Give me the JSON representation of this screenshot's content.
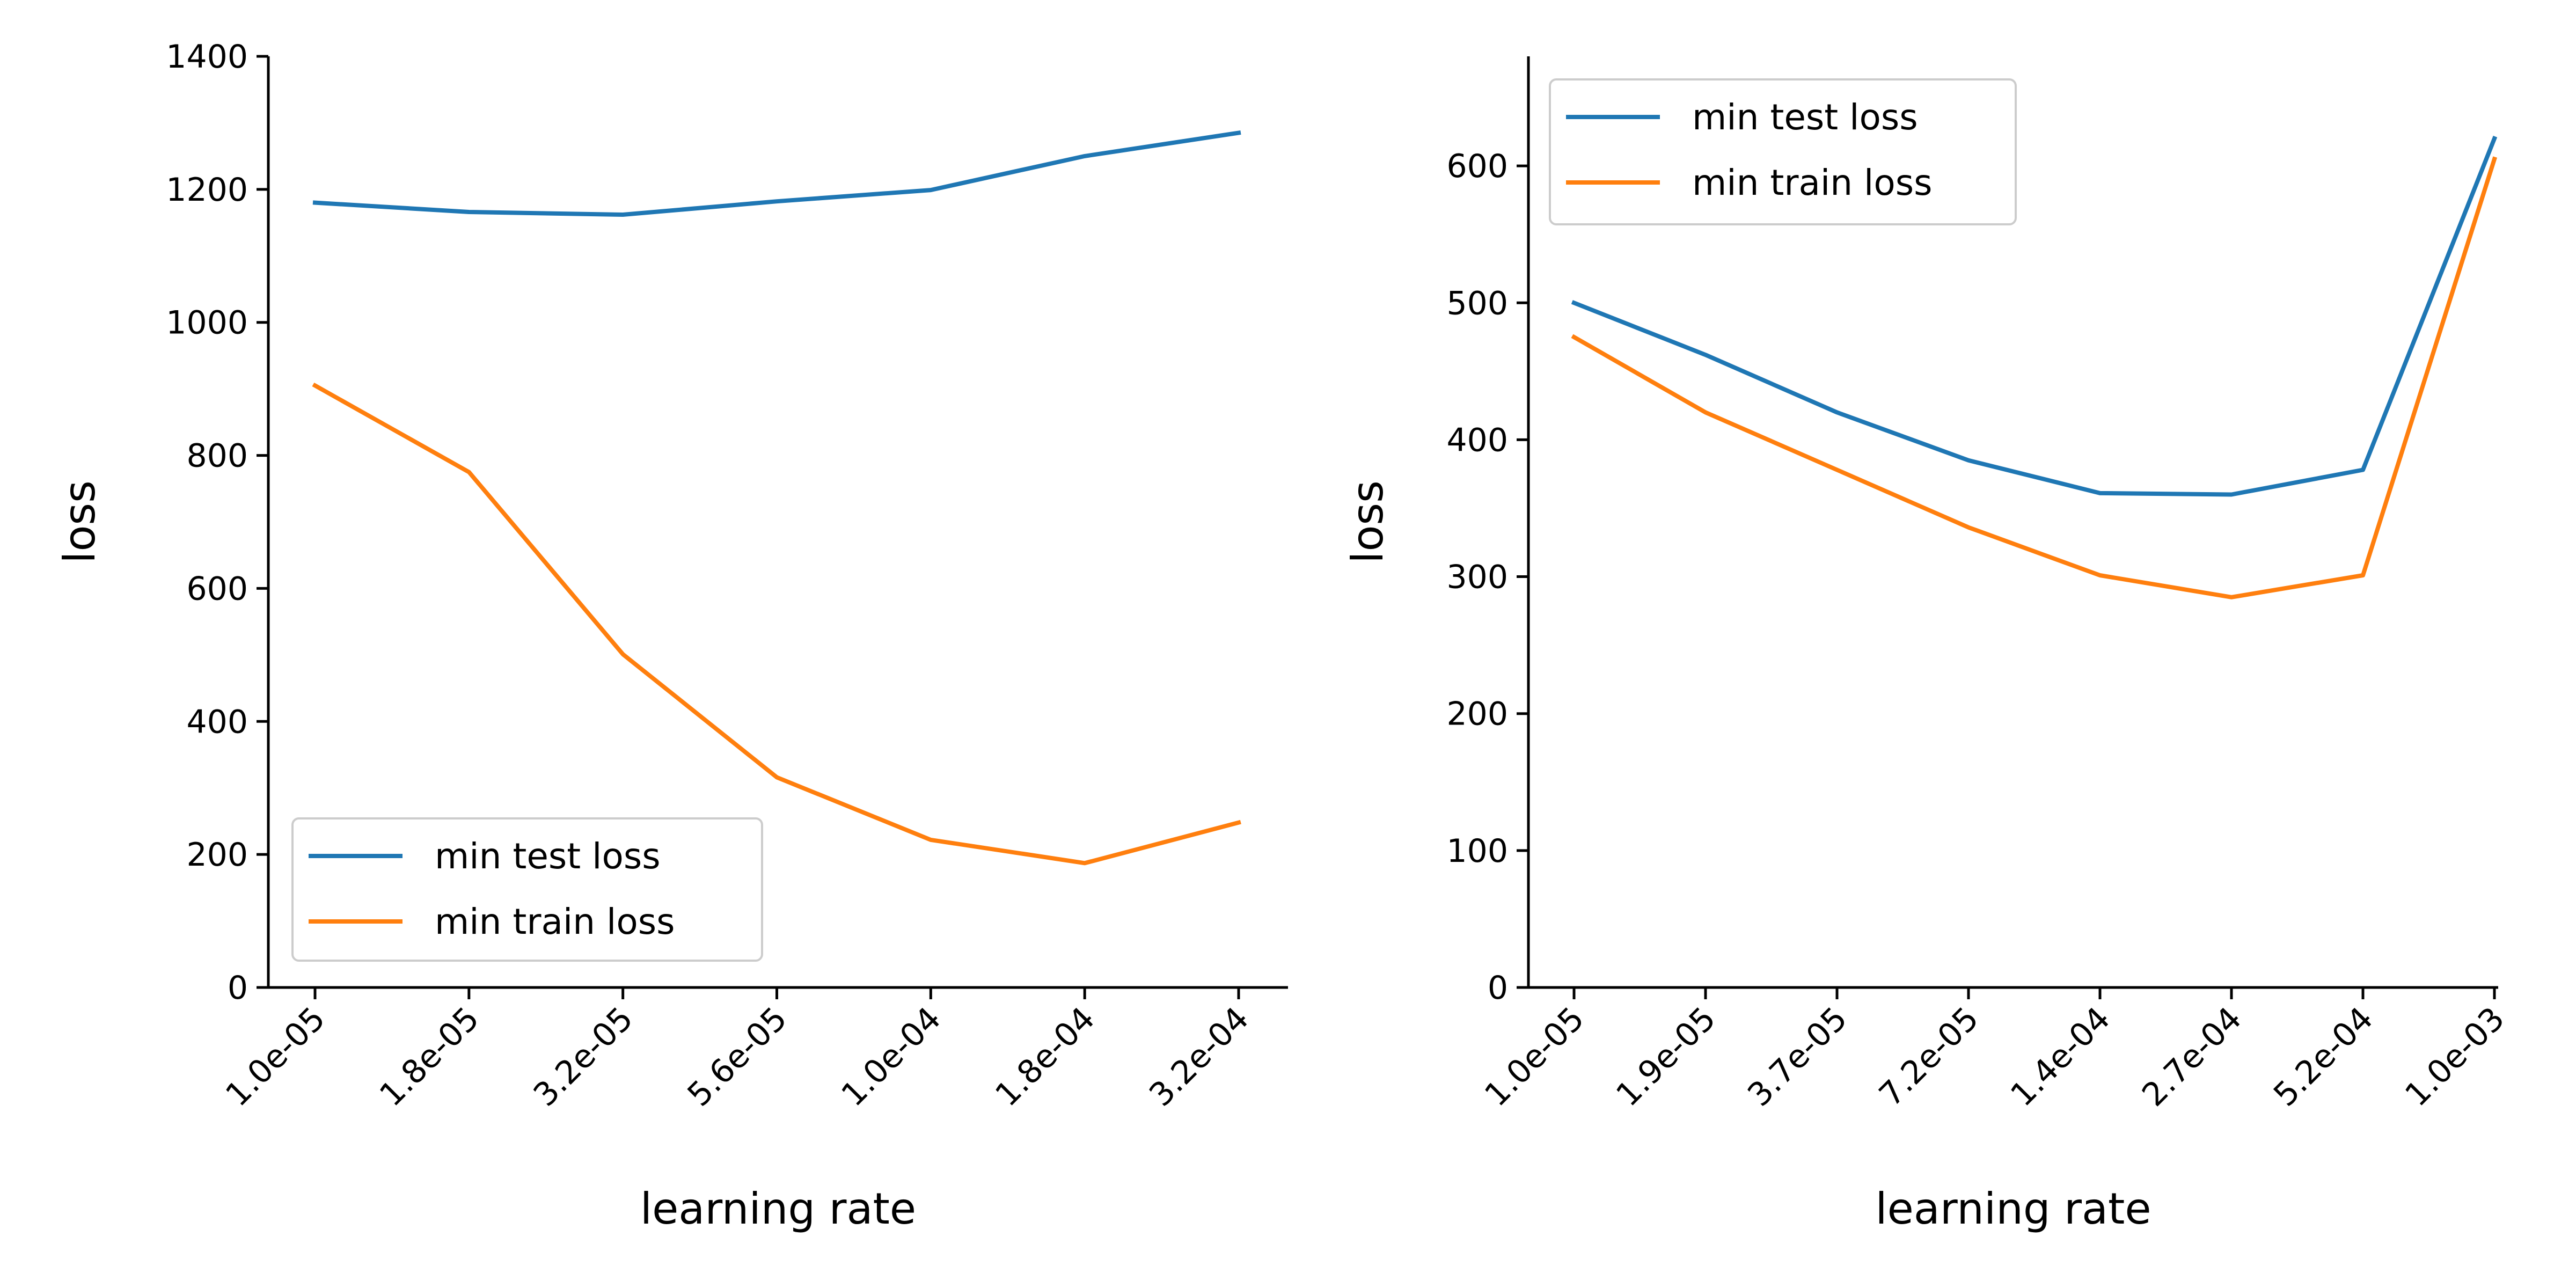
{
  "chart_data": [
    {
      "type": "line",
      "xlabel": "learning rate",
      "ylabel": "loss",
      "categories": [
        "1.0e-05",
        "1.8e-05",
        "3.2e-05",
        "5.6e-05",
        "1.0e-04",
        "1.8e-04",
        "3.2e-04"
      ],
      "yticks": [
        0,
        200,
        400,
        600,
        800,
        1000,
        1200,
        1400
      ],
      "ylim": [
        0,
        1400
      ],
      "grid": false,
      "legend_position": "lower-left",
      "series": [
        {
          "name": "min test loss",
          "color": "#1f77b4",
          "values": [
            1180,
            1166,
            1162,
            1182,
            1199,
            1250,
            1285
          ]
        },
        {
          "name": "min train loss",
          "color": "#ff7f0e",
          "values": [
            905,
            775,
            501,
            316,
            222,
            187,
            248
          ]
        }
      ]
    },
    {
      "type": "line",
      "xlabel": "learning rate",
      "ylabel": "loss",
      "categories": [
        "1.0e-05",
        "1.9e-05",
        "3.7e-05",
        "7.2e-05",
        "1.4e-04",
        "2.7e-04",
        "5.2e-04",
        "1.0e-03"
      ],
      "yticks": [
        0,
        100,
        200,
        300,
        400,
        500,
        600
      ],
      "ylim": [
        0,
        680
      ],
      "grid": false,
      "legend_position": "upper-left",
      "series": [
        {
          "name": "min test loss",
          "color": "#1f77b4",
          "values": [
            500,
            462,
            420,
            385,
            361,
            360,
            378,
            620
          ]
        },
        {
          "name": "min train loss",
          "color": "#ff7f0e",
          "values": [
            475,
            420,
            378,
            336,
            301,
            285,
            301,
            605
          ]
        }
      ]
    }
  ]
}
